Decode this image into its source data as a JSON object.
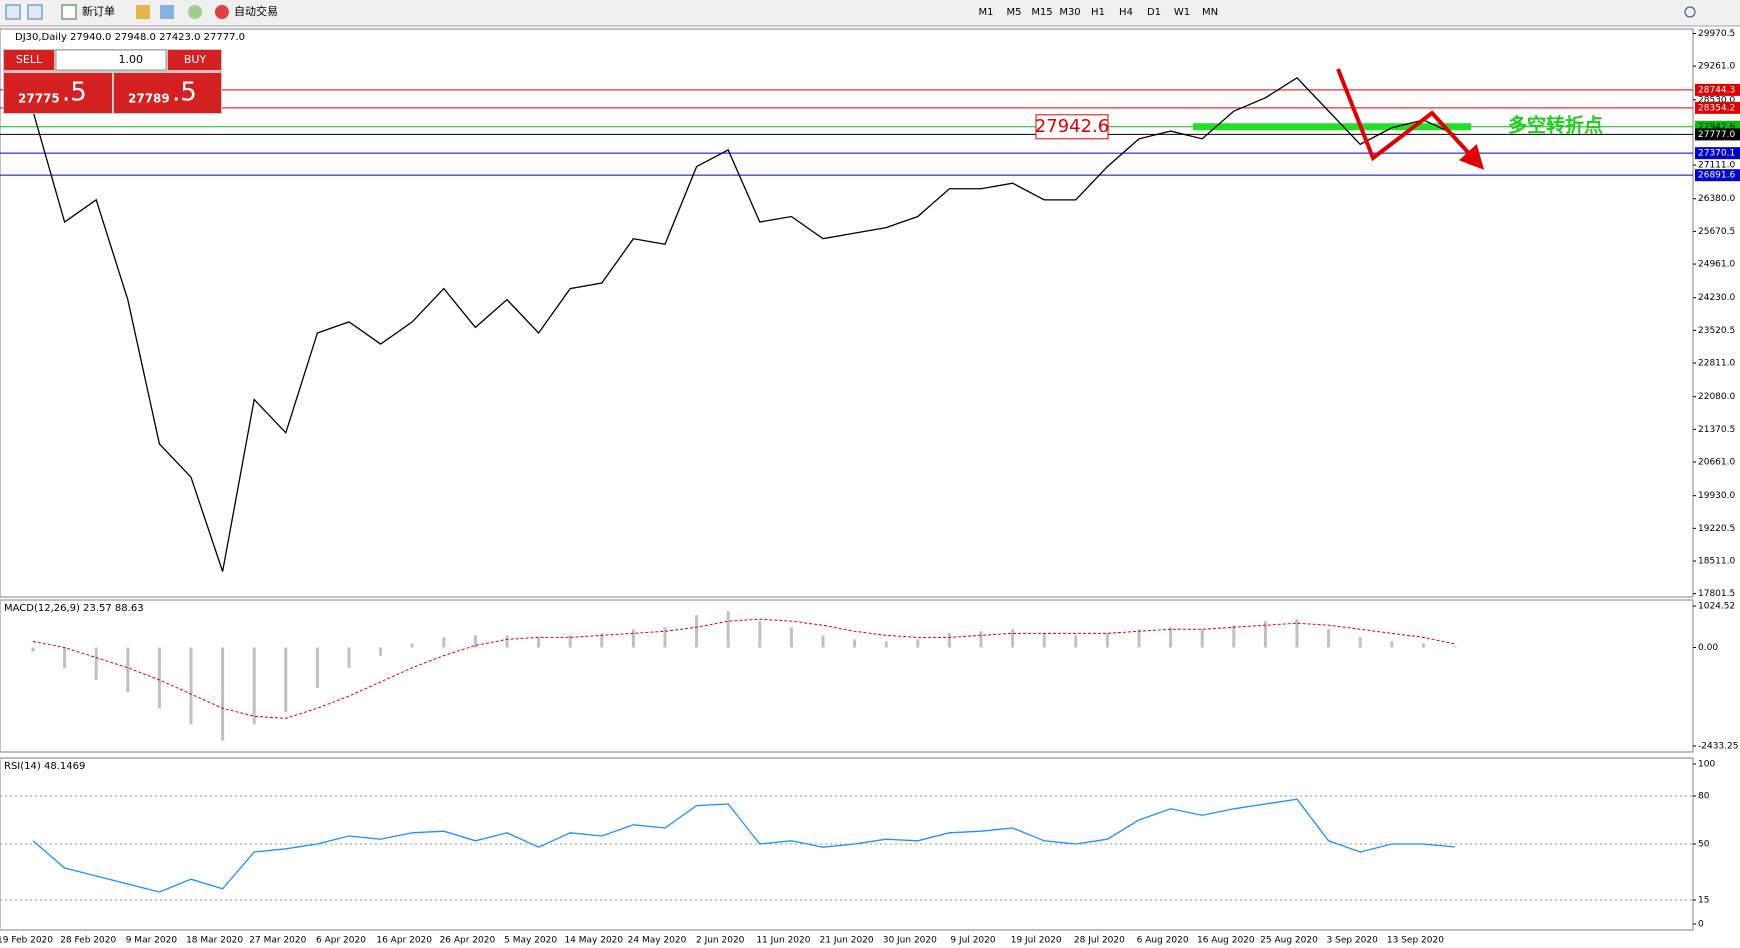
{
  "toolbar": {
    "new_order": "新订单",
    "auto_trading": "自动交易",
    "timeframes": [
      "M1",
      "M5",
      "M15",
      "M30",
      "H1",
      "H4",
      "D1",
      "W1",
      "MN"
    ]
  },
  "trade_panel": {
    "sell": "SELL",
    "buy": "BUY",
    "lot": "1.00",
    "sell_price": "27775",
    "sell_pips": ".5",
    "buy_price": "27789",
    "buy_pips": ".5"
  },
  "chart_data": [
    {
      "type": "line",
      "title": "DJ30,Daily  27940.0 27948.0 27423.0 27777.0",
      "color": "#000000",
      "categories": [
        "19 Feb 2020",
        null,
        "28 Feb 2020",
        null,
        "9 Mar 2020",
        null,
        "18 Mar 2020",
        null,
        "27 Mar 2020",
        null,
        "6 Apr 2020",
        null,
        "16 Apr 2020",
        null,
        "26 Apr 2020",
        null,
        "5 May 2020",
        null,
        "14 May 2020",
        null,
        "24 May 2020",
        null,
        "2 Jun 2020",
        null,
        "11 Jun 2020",
        null,
        "21 Jun 2020",
        null,
        "30 Jun 2020",
        null,
        "9 Jul 2020",
        null,
        "19 Jul 2020",
        null,
        "28 Jul 2020",
        null,
        "6 Aug 2020",
        null,
        "16 Aug 2020",
        null,
        "25 Aug 2020",
        null,
        "3 Sep 2020",
        null,
        "13 Sep 2020",
        null
      ],
      "values": [
        28283,
        25874,
        26356,
        24187,
        21054,
        20332,
        18283,
        22018,
        21296,
        23464,
        23705,
        23223,
        23705,
        24428,
        23585,
        24187,
        23464,
        24428,
        24549,
        25512,
        25392,
        27078,
        27440,
        25874,
        25994,
        25512,
        25633,
        25753,
        25994,
        26597,
        26597,
        26717,
        26356,
        26356,
        27078,
        27681,
        27850,
        27681,
        28283,
        28572,
        29006,
        28283,
        27561,
        27922,
        28090,
        27777
      ],
      "ylim": [
        17729,
        30067
      ],
      "yticks": [
        {
          "value": 29970.5,
          "label": "29970.5"
        },
        {
          "value": 29261,
          "label": "29261.0"
        },
        {
          "value": 28530,
          "label": "28530.0"
        },
        {
          "value": 27111,
          "label": "27111.0"
        },
        {
          "value": 26380,
          "label": "26380.0"
        },
        {
          "value": 25670.5,
          "label": "25670.5"
        },
        {
          "value": 24961,
          "label": "24961.0"
        },
        {
          "value": 24230,
          "label": "24230.0"
        },
        {
          "value": 23520.5,
          "label": "23520.5"
        },
        {
          "value": 22811,
          "label": "22811.0"
        },
        {
          "value": 22080,
          "label": "22080.0"
        },
        {
          "value": 21370.5,
          "label": "21370.5"
        },
        {
          "value": 20661,
          "label": "20661.0"
        },
        {
          "value": 19930,
          "label": "19930.0"
        },
        {
          "value": 19220.5,
          "label": "19220.5"
        },
        {
          "value": 18511,
          "label": "18511.0"
        },
        {
          "value": 17801.5,
          "label": "17801.5"
        }
      ],
      "hlines": [
        {
          "value": 28744.3,
          "color": "#e00000"
        },
        {
          "value": 28354.2,
          "color": "#e00000"
        },
        {
          "value": 27942.6,
          "color": "#00c000"
        },
        {
          "value": 27777,
          "label": "27777.0",
          "color": "#000000"
        },
        {
          "value": 27370.1,
          "color": "#0000cc"
        },
        {
          "value": 26891.6,
          "color": "#0000cc"
        }
      ],
      "annotation_value": 27942.6,
      "annotation_text": "多空转折点"
    },
    {
      "type": "bar",
      "title": "MACD(12,26,9) 23.57 88.63",
      "color": "#c0c0c0",
      "values": [
        -100,
        -500,
        -800,
        -1100,
        -1500,
        -1900,
        -2300,
        -1900,
        -1600,
        -1000,
        -500,
        -200,
        100,
        250,
        300,
        300,
        250,
        300,
        350,
        450,
        500,
        800,
        900,
        650,
        500,
        300,
        200,
        150,
        200,
        350,
        400,
        450,
        350,
        300,
        350,
        450,
        500,
        450,
        550,
        650,
        700,
        450,
        250,
        150,
        100,
        23.57
      ],
      "signal_values": [
        150,
        0,
        -250,
        -500,
        -800,
        -1150,
        -1500,
        -1700,
        -1750,
        -1500,
        -1200,
        -850,
        -500,
        -200,
        50,
        200,
        250,
        250,
        300,
        350,
        400,
        500,
        650,
        700,
        650,
        550,
        400,
        300,
        250,
        250,
        300,
        350,
        350,
        350,
        350,
        400,
        450,
        450,
        500,
        550,
        600,
        550,
        450,
        350,
        250,
        88.63
      ],
      "signal_color": "#e00000",
      "ylim": [
        -2581,
        1173
      ],
      "yticks": [
        1024.52,
        {
          "value": 0,
          "label": "0.00"
        },
        -2433.25
      ]
    },
    {
      "type": "line",
      "title": "RSI(14) 48.1469",
      "color": "#1e90ff",
      "values": [
        52,
        35,
        30,
        25,
        20,
        28,
        22,
        45,
        47,
        50,
        55,
        53,
        57,
        58,
        52,
        57,
        48,
        57,
        55,
        62,
        60,
        74,
        75,
        50,
        52,
        48,
        50,
        53,
        52,
        57,
        58,
        60,
        52,
        50,
        53,
        65,
        72,
        68,
        72,
        75,
        78,
        52,
        45,
        50,
        50,
        48.1469
      ],
      "ylim": [
        -3.75,
        103.75
      ],
      "yticks": [
        100,
        80,
        50,
        15,
        0
      ],
      "grid_values": [
        80,
        50,
        15
      ]
    }
  ]
}
